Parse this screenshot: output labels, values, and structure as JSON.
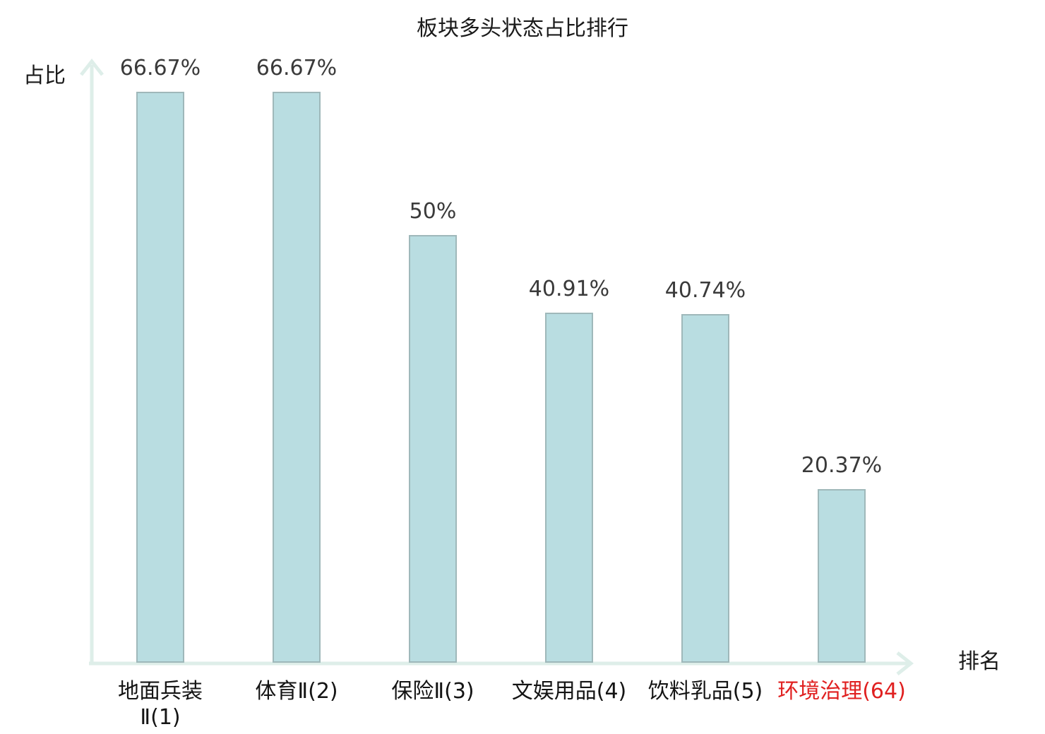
{
  "colors": {
    "bar_fill": "#b9dde1",
    "bar_border": "#9fb8ba",
    "axis": "#deeee9",
    "value_label": "#3a3a3a",
    "tick_label": "#141414",
    "highlight": "#e02020",
    "title": "#1a1a1a"
  },
  "chart_data": {
    "type": "bar",
    "title": "板块多头状态占比排行",
    "xlabel": "排名",
    "ylabel": "占比",
    "categories": [
      "地面兵装\nⅡ(1)",
      "体育Ⅱ(2)",
      "保险Ⅱ(3)",
      "文娱用品(4)",
      "饮料乳品(5)",
      "环境治理(64)"
    ],
    "values": [
      66.67,
      66.67,
      50,
      40.91,
      40.74,
      20.37
    ],
    "value_labels": [
      "66.67%",
      "66.67%",
      "50%",
      "40.91%",
      "40.74%",
      "20.37%"
    ],
    "highlight_index": 5,
    "ylim": [
      0,
      70
    ],
    "grid": false,
    "legend": false
  }
}
